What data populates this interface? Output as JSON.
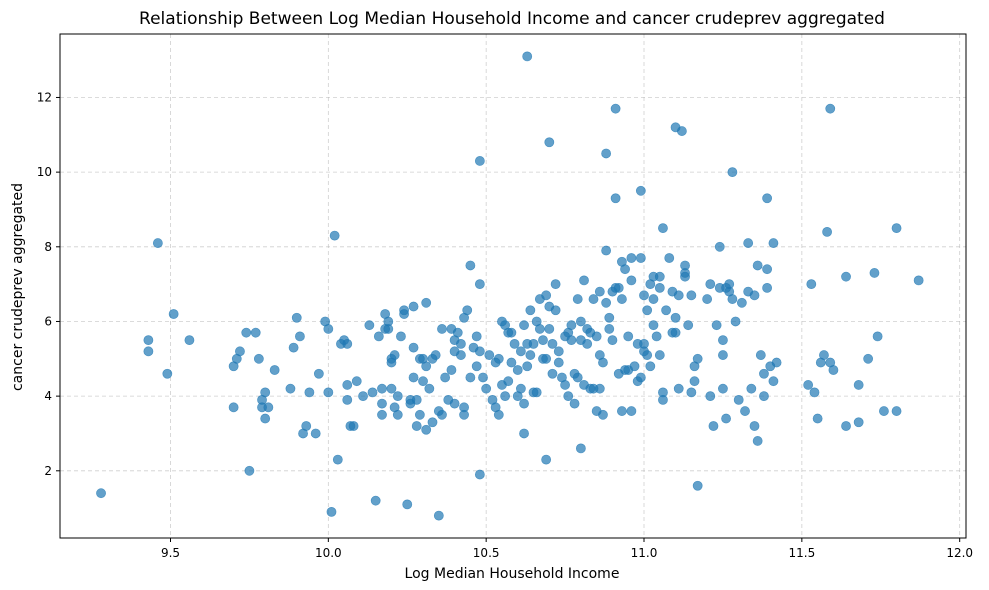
{
  "chart_data": {
    "type": "scatter",
    "title": "Relationship Between Log Median Household Income and cancer crudeprev aggregated",
    "xlabel": "Log Median Household Income",
    "ylabel": "cancer crudeprev aggregated",
    "xlim": [
      9.15,
      12.02
    ],
    "ylim": [
      0.2,
      13.7
    ],
    "xticks": [
      9.5,
      10.0,
      10.5,
      11.0,
      11.5,
      12.0
    ],
    "xtick_labels": [
      "9.5",
      "10.0",
      "10.5",
      "11.0",
      "11.5",
      "12.0"
    ],
    "yticks": [
      2,
      4,
      6,
      8,
      10,
      12
    ],
    "ytick_labels": [
      "2",
      "4",
      "6",
      "8",
      "10",
      "12"
    ],
    "grid": true,
    "color": "#1f77b4",
    "points": [
      [
        9.28,
        1.4
      ],
      [
        9.43,
        5.5
      ],
      [
        9.43,
        5.2
      ],
      [
        9.46,
        8.1
      ],
      [
        9.49,
        4.6
      ],
      [
        9.51,
        6.2
      ],
      [
        9.56,
        5.5
      ],
      [
        9.7,
        3.7
      ],
      [
        9.7,
        4.8
      ],
      [
        9.71,
        5.0
      ],
      [
        9.72,
        5.2
      ],
      [
        9.74,
        5.7
      ],
      [
        9.75,
        2.0
      ],
      [
        9.77,
        5.7
      ],
      [
        9.78,
        5.0
      ],
      [
        9.79,
        3.9
      ],
      [
        9.79,
        3.7
      ],
      [
        9.8,
        3.4
      ],
      [
        9.8,
        4.1
      ],
      [
        9.81,
        3.7
      ],
      [
        9.83,
        4.7
      ],
      [
        9.88,
        4.2
      ],
      [
        9.89,
        5.3
      ],
      [
        9.9,
        6.1
      ],
      [
        9.91,
        5.6
      ],
      [
        9.92,
        3.0
      ],
      [
        9.93,
        3.2
      ],
      [
        9.94,
        4.1
      ],
      [
        9.96,
        3.0
      ],
      [
        9.97,
        4.6
      ],
      [
        9.99,
        6.0
      ],
      [
        10.0,
        5.8
      ],
      [
        10.0,
        4.1
      ],
      [
        10.01,
        0.9
      ],
      [
        10.02,
        8.3
      ],
      [
        10.03,
        2.3
      ],
      [
        10.04,
        5.4
      ],
      [
        10.05,
        5.5
      ],
      [
        10.06,
        4.3
      ],
      [
        10.06,
        5.4
      ],
      [
        10.06,
        3.9
      ],
      [
        10.07,
        3.2
      ],
      [
        10.08,
        3.2
      ],
      [
        10.09,
        4.4
      ],
      [
        10.11,
        4.0
      ],
      [
        10.13,
        5.9
      ],
      [
        10.14,
        4.1
      ],
      [
        10.15,
        1.2
      ],
      [
        10.16,
        5.6
      ],
      [
        10.17,
        4.2
      ],
      [
        10.17,
        3.8
      ],
      [
        10.17,
        3.5
      ],
      [
        10.18,
        6.2
      ],
      [
        10.18,
        5.8
      ],
      [
        10.19,
        6.0
      ],
      [
        10.19,
        5.8
      ],
      [
        10.2,
        4.2
      ],
      [
        10.2,
        5.0
      ],
      [
        10.2,
        4.9
      ],
      [
        10.21,
        5.1
      ],
      [
        10.21,
        3.7
      ],
      [
        10.22,
        4.0
      ],
      [
        10.22,
        3.5
      ],
      [
        10.23,
        5.6
      ],
      [
        10.24,
        6.3
      ],
      [
        10.24,
        6.2
      ],
      [
        10.25,
        1.1
      ],
      [
        10.26,
        3.8
      ],
      [
        10.26,
        3.9
      ],
      [
        10.27,
        4.5
      ],
      [
        10.27,
        5.3
      ],
      [
        10.27,
        6.4
      ],
      [
        10.28,
        3.9
      ],
      [
        10.28,
        3.2
      ],
      [
        10.29,
        5.0
      ],
      [
        10.29,
        3.5
      ],
      [
        10.3,
        5.0
      ],
      [
        10.3,
        4.4
      ],
      [
        10.31,
        6.5
      ],
      [
        10.31,
        3.1
      ],
      [
        10.31,
        4.8
      ],
      [
        10.32,
        4.2
      ],
      [
        10.33,
        5.0
      ],
      [
        10.33,
        3.3
      ],
      [
        10.34,
        5.1
      ],
      [
        10.35,
        3.6
      ],
      [
        10.35,
        0.8
      ],
      [
        10.36,
        3.5
      ],
      [
        10.36,
        5.8
      ],
      [
        10.37,
        4.5
      ],
      [
        10.38,
        3.9
      ],
      [
        10.39,
        5.8
      ],
      [
        10.39,
        4.7
      ],
      [
        10.4,
        3.8
      ],
      [
        10.4,
        5.2
      ],
      [
        10.4,
        5.5
      ],
      [
        10.41,
        5.7
      ],
      [
        10.42,
        5.1
      ],
      [
        10.42,
        5.4
      ],
      [
        10.43,
        3.7
      ],
      [
        10.43,
        3.5
      ],
      [
        10.43,
        6.1
      ],
      [
        10.44,
        6.3
      ],
      [
        10.45,
        7.5
      ],
      [
        10.45,
        4.5
      ],
      [
        10.46,
        5.3
      ],
      [
        10.47,
        5.6
      ],
      [
        10.47,
        4.8
      ],
      [
        10.48,
        10.3
      ],
      [
        10.48,
        7.0
      ],
      [
        10.48,
        5.2
      ],
      [
        10.48,
        1.9
      ],
      [
        10.49,
        4.5
      ],
      [
        10.5,
        4.2
      ],
      [
        10.51,
        5.1
      ],
      [
        10.52,
        3.9
      ],
      [
        10.53,
        3.7
      ],
      [
        10.53,
        4.9
      ],
      [
        10.54,
        3.5
      ],
      [
        10.54,
        5.0
      ],
      [
        10.55,
        6.0
      ],
      [
        10.55,
        4.3
      ],
      [
        10.56,
        5.9
      ],
      [
        10.56,
        4.0
      ],
      [
        10.57,
        5.7
      ],
      [
        10.57,
        4.4
      ],
      [
        10.58,
        5.7
      ],
      [
        10.58,
        4.9
      ],
      [
        10.59,
        5.4
      ],
      [
        10.6,
        4.7
      ],
      [
        10.6,
        4.0
      ],
      [
        10.61,
        5.2
      ],
      [
        10.61,
        4.2
      ],
      [
        10.62,
        3.0
      ],
      [
        10.62,
        5.9
      ],
      [
        10.62,
        3.8
      ],
      [
        10.63,
        4.8
      ],
      [
        10.63,
        5.4
      ],
      [
        10.63,
        13.1
      ],
      [
        10.64,
        5.1
      ],
      [
        10.64,
        6.3
      ],
      [
        10.65,
        4.1
      ],
      [
        10.65,
        5.4
      ],
      [
        10.66,
        6.0
      ],
      [
        10.66,
        4.1
      ],
      [
        10.67,
        5.8
      ],
      [
        10.67,
        6.6
      ],
      [
        10.68,
        5.0
      ],
      [
        10.68,
        5.5
      ],
      [
        10.69,
        6.7
      ],
      [
        10.69,
        5.0
      ],
      [
        10.69,
        2.3
      ],
      [
        10.7,
        10.8
      ],
      [
        10.7,
        6.4
      ],
      [
        10.7,
        5.8
      ],
      [
        10.71,
        5.4
      ],
      [
        10.71,
        4.6
      ],
      [
        10.72,
        6.3
      ],
      [
        10.72,
        7.0
      ],
      [
        10.73,
        5.2
      ],
      [
        10.73,
        4.9
      ],
      [
        10.74,
        4.5
      ],
      [
        10.75,
        5.6
      ],
      [
        10.75,
        4.3
      ],
      [
        10.76,
        5.7
      ],
      [
        10.76,
        4.0
      ],
      [
        10.77,
        5.9
      ],
      [
        10.77,
        5.5
      ],
      [
        10.78,
        3.8
      ],
      [
        10.78,
        4.6
      ],
      [
        10.79,
        6.6
      ],
      [
        10.79,
        4.5
      ],
      [
        10.8,
        6.0
      ],
      [
        10.8,
        5.5
      ],
      [
        10.8,
        2.6
      ],
      [
        10.81,
        7.1
      ],
      [
        10.81,
        4.3
      ],
      [
        10.82,
        5.8
      ],
      [
        10.82,
        5.4
      ],
      [
        10.83,
        5.7
      ],
      [
        10.83,
        4.2
      ],
      [
        10.84,
        4.2
      ],
      [
        10.84,
        6.6
      ],
      [
        10.85,
        5.6
      ],
      [
        10.85,
        3.6
      ],
      [
        10.86,
        6.8
      ],
      [
        10.86,
        4.2
      ],
      [
        10.86,
        5.1
      ],
      [
        10.87,
        4.9
      ],
      [
        10.87,
        3.5
      ],
      [
        10.88,
        6.5
      ],
      [
        10.88,
        10.5
      ],
      [
        10.88,
        7.9
      ],
      [
        10.89,
        6.1
      ],
      [
        10.89,
        5.8
      ],
      [
        10.9,
        5.5
      ],
      [
        10.9,
        6.8
      ],
      [
        10.91,
        9.3
      ],
      [
        10.91,
        6.9
      ],
      [
        10.91,
        11.7
      ],
      [
        10.92,
        6.9
      ],
      [
        10.92,
        4.6
      ],
      [
        10.93,
        3.6
      ],
      [
        10.93,
        7.6
      ],
      [
        10.93,
        6.6
      ],
      [
        10.94,
        4.7
      ],
      [
        10.94,
        7.4
      ],
      [
        10.95,
        4.7
      ],
      [
        10.95,
        5.6
      ],
      [
        10.96,
        7.7
      ],
      [
        10.96,
        7.1
      ],
      [
        10.96,
        3.6
      ],
      [
        10.97,
        4.8
      ],
      [
        10.98,
        4.4
      ],
      [
        10.98,
        5.4
      ],
      [
        10.99,
        4.5
      ],
      [
        10.99,
        9.5
      ],
      [
        10.99,
        7.7
      ],
      [
        11.0,
        6.7
      ],
      [
        11.0,
        5.4
      ],
      [
        11.0,
        5.2
      ],
      [
        11.01,
        5.1
      ],
      [
        11.01,
        6.3
      ],
      [
        11.02,
        4.8
      ],
      [
        11.02,
        7.0
      ],
      [
        11.03,
        6.6
      ],
      [
        11.03,
        5.9
      ],
      [
        11.03,
        7.2
      ],
      [
        11.04,
        5.6
      ],
      [
        11.05,
        6.9
      ],
      [
        11.05,
        5.1
      ],
      [
        11.05,
        7.2
      ],
      [
        11.06,
        8.5
      ],
      [
        11.06,
        4.1
      ],
      [
        11.06,
        3.9
      ],
      [
        11.07,
        6.3
      ],
      [
        11.08,
        7.7
      ],
      [
        11.09,
        5.7
      ],
      [
        11.09,
        6.8
      ],
      [
        11.1,
        11.2
      ],
      [
        11.1,
        6.1
      ],
      [
        11.1,
        5.7
      ],
      [
        11.11,
        4.2
      ],
      [
        11.11,
        6.7
      ],
      [
        11.12,
        11.1
      ],
      [
        11.13,
        7.3
      ],
      [
        11.13,
        7.2
      ],
      [
        11.13,
        7.5
      ],
      [
        11.14,
        5.9
      ],
      [
        11.15,
        4.1
      ],
      [
        11.15,
        6.7
      ],
      [
        11.16,
        4.4
      ],
      [
        11.16,
        4.8
      ],
      [
        11.17,
        1.6
      ],
      [
        11.17,
        5.0
      ],
      [
        11.2,
        6.6
      ],
      [
        11.21,
        7.0
      ],
      [
        11.21,
        4.0
      ],
      [
        11.22,
        3.2
      ],
      [
        11.23,
        5.9
      ],
      [
        11.24,
        8.0
      ],
      [
        11.24,
        6.9
      ],
      [
        11.25,
        5.5
      ],
      [
        11.25,
        5.1
      ],
      [
        11.25,
        4.2
      ],
      [
        11.26,
        3.4
      ],
      [
        11.26,
        6.9
      ],
      [
        11.27,
        6.8
      ],
      [
        11.27,
        7.0
      ],
      [
        11.28,
        10.0
      ],
      [
        11.28,
        6.6
      ],
      [
        11.29,
        6.0
      ],
      [
        11.3,
        3.9
      ],
      [
        11.31,
        6.5
      ],
      [
        11.32,
        3.6
      ],
      [
        11.33,
        8.1
      ],
      [
        11.33,
        6.8
      ],
      [
        11.34,
        4.2
      ],
      [
        11.35,
        6.7
      ],
      [
        11.35,
        3.2
      ],
      [
        11.36,
        7.5
      ],
      [
        11.36,
        2.8
      ],
      [
        11.37,
        5.1
      ],
      [
        11.38,
        4.0
      ],
      [
        11.38,
        4.6
      ],
      [
        11.39,
        9.3
      ],
      [
        11.39,
        7.4
      ],
      [
        11.39,
        6.9
      ],
      [
        11.4,
        4.8
      ],
      [
        11.41,
        8.1
      ],
      [
        11.41,
        4.4
      ],
      [
        11.42,
        4.9
      ],
      [
        11.52,
        4.3
      ],
      [
        11.53,
        7.0
      ],
      [
        11.54,
        4.1
      ],
      [
        11.55,
        3.4
      ],
      [
        11.56,
        4.9
      ],
      [
        11.57,
        5.1
      ],
      [
        11.58,
        8.4
      ],
      [
        11.59,
        11.7
      ],
      [
        11.59,
        4.9
      ],
      [
        11.6,
        4.7
      ],
      [
        11.64,
        3.2
      ],
      [
        11.64,
        7.2
      ],
      [
        11.68,
        3.3
      ],
      [
        11.68,
        4.3
      ],
      [
        11.71,
        5.0
      ],
      [
        11.73,
        7.3
      ],
      [
        11.74,
        5.6
      ],
      [
        11.76,
        3.6
      ],
      [
        11.8,
        3.6
      ],
      [
        11.8,
        8.5
      ],
      [
        11.87,
        7.1
      ]
    ]
  }
}
